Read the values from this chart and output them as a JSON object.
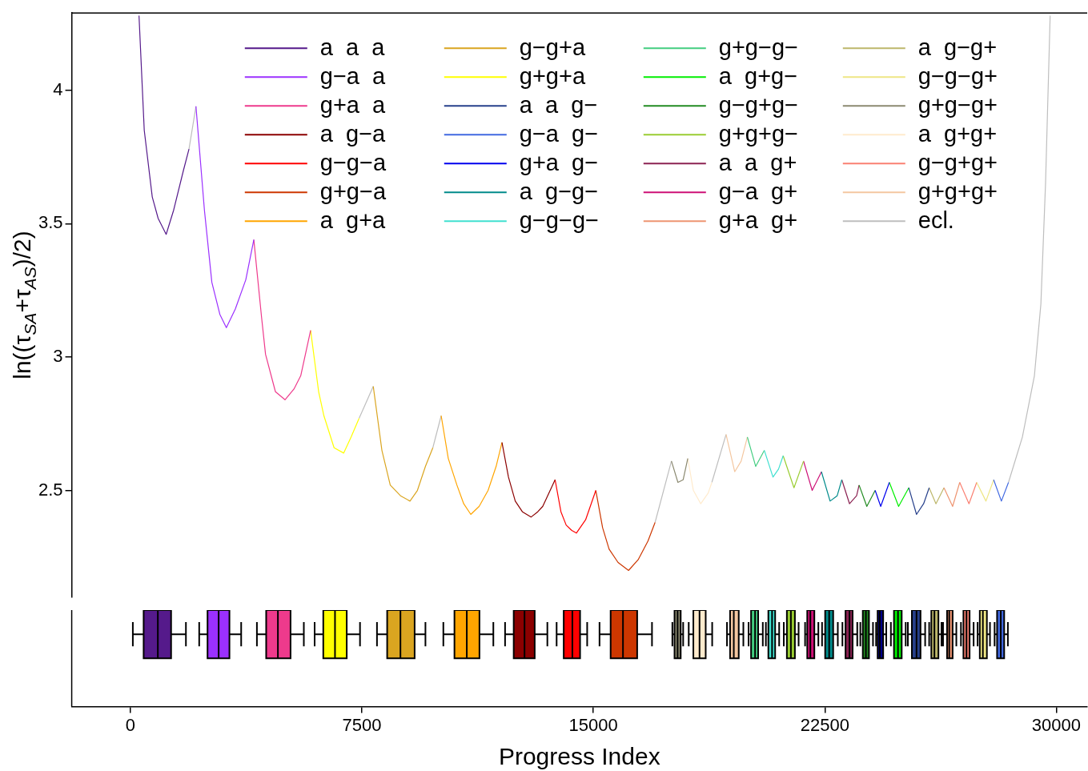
{
  "chart_data": [
    {
      "type": "line",
      "ylabel": "ln((τ$_{SA}$+τ$_{AS}$)/2)",
      "xlim": [
        -1900,
        31000
      ],
      "ylim": [
        2.1,
        4.29
      ],
      "xticks": [
        0,
        7500,
        15000,
        22500,
        30000
      ],
      "yticks": [
        2.5,
        3,
        3.5,
        4
      ],
      "grid": false,
      "legend": "top",
      "marker": "none",
      "line_style": "solid",
      "tick_labels": "y",
      "series": [
        {
          "name": "a  a  a",
          "color": "#551a8b",
          "x": [
            280,
            450,
            710,
            900,
            1160,
            1400,
            1720,
            1900
          ],
          "values": [
            4.28,
            3.85,
            3.6,
            3.52,
            3.46,
            3.55,
            3.7,
            3.78
          ]
        },
        {
          "name": "g−a  a",
          "color": "#9b30ff",
          "x": [
            2125,
            2400,
            2640,
            2900,
            3110,
            3400,
            3740,
            4000
          ],
          "values": [
            3.94,
            3.55,
            3.28,
            3.16,
            3.11,
            3.18,
            3.29,
            3.44
          ]
        },
        {
          "name": "g+a  a",
          "color": "#ee3a8c",
          "x": [
            4000,
            4250,
            4380,
            4700,
            5010,
            5300,
            5520,
            5840
          ],
          "values": [
            3.44,
            3.15,
            3.01,
            2.87,
            2.84,
            2.88,
            2.93,
            3.1
          ]
        },
        {
          "name": "a  g−a",
          "color": "#8b0000",
          "x": [
            12040,
            12250,
            12470,
            12700,
            12980,
            13200,
            13360,
            13760
          ],
          "values": [
            2.68,
            2.55,
            2.46,
            2.42,
            2.4,
            2.42,
            2.44,
            2.54
          ]
        },
        {
          "name": "g−g−a",
          "color": "#ff0000",
          "x": [
            13760,
            13950,
            14120,
            14300,
            14450,
            14750,
            15080
          ],
          "values": [
            2.54,
            2.42,
            2.37,
            2.35,
            2.34,
            2.39,
            2.5
          ]
        },
        {
          "name": "g+g−a",
          "color": "#cd3700",
          "x": [
            15080,
            15300,
            15510,
            15800,
            16140,
            16450,
            16770,
            17000
          ],
          "values": [
            2.5,
            2.36,
            2.28,
            2.23,
            2.2,
            2.24,
            2.31,
            2.38
          ]
        },
        {
          "name": "a  g+a",
          "color": "#ffa500",
          "x": [
            10070,
            10300,
            10580,
            10800,
            11030,
            11300,
            11590,
            11850,
            12040
          ],
          "values": [
            2.78,
            2.62,
            2.52,
            2.45,
            2.41,
            2.44,
            2.5,
            2.59,
            2.68
          ]
        },
        {
          "name": "g−g+a",
          "color": "#daa520",
          "x": [
            7870,
            8150,
            8420,
            8750,
            9060,
            9300,
            9560,
            9800
          ],
          "values": [
            2.89,
            2.65,
            2.52,
            2.48,
            2.46,
            2.5,
            2.59,
            2.66
          ]
        },
        {
          "name": "g+g+a",
          "color": "#ffff00",
          "x": [
            5840,
            6100,
            6270,
            6600,
            6910,
            7150,
            7410
          ],
          "values": [
            3.1,
            2.87,
            2.78,
            2.66,
            2.64,
            2.7,
            2.77
          ]
        },
        {
          "name": "a  a  g−",
          "color": "#27408b",
          "x": [
            25220,
            25470,
            25700,
            25880
          ],
          "values": [
            2.51,
            2.41,
            2.45,
            2.51
          ]
        },
        {
          "name": "g−a  g−",
          "color": "#4169e1",
          "x": [
            27970,
            28220,
            28450
          ],
          "values": [
            2.54,
            2.46,
            2.53
          ]
        },
        {
          "name": "g+a  g−",
          "color": "#0000ee",
          "x": [
            24130,
            24310,
            24590
          ],
          "values": [
            2.5,
            2.44,
            2.53
          ]
        },
        {
          "name": "a  g−g−",
          "color": "#008b8b",
          "x": [
            22390,
            22670,
            22900,
            23050
          ],
          "values": [
            2.57,
            2.46,
            2.48,
            2.54
          ]
        },
        {
          "name": "g−g−g−",
          "color": "#40e0d0",
          "x": [
            20540,
            20820,
            21000,
            21150
          ],
          "values": [
            2.65,
            2.55,
            2.58,
            2.63
          ]
        },
        {
          "name": "g+g−g−",
          "color": "#43cd80",
          "x": [
            19990,
            20260,
            20540
          ],
          "values": [
            2.7,
            2.59,
            2.65
          ]
        },
        {
          "name": "a  g+g−",
          "color": "#00ee00",
          "x": [
            24590,
            24890,
            25220
          ],
          "values": [
            2.53,
            2.44,
            2.51
          ]
        },
        {
          "name": "g−g+g−",
          "color": "#228b22",
          "x": [
            23610,
            23860,
            24130
          ],
          "values": [
            2.52,
            2.44,
            2.5
          ]
        },
        {
          "name": "g+g+g−",
          "color": "#9acd32",
          "x": [
            21150,
            21500,
            21810
          ],
          "values": [
            2.63,
            2.51,
            2.61
          ]
        },
        {
          "name": "a  a  g+",
          "color": "#8b2252",
          "x": [
            23050,
            23300,
            23530,
            23610
          ],
          "values": [
            2.54,
            2.45,
            2.48,
            2.52
          ]
        },
        {
          "name": "g−a  g+",
          "color": "#cd1076",
          "x": [
            21810,
            22090,
            22390
          ],
          "values": [
            2.61,
            2.5,
            2.57
          ]
        },
        {
          "name": "g+a  g+",
          "color": "#ee9572",
          "x": [
            26360,
            26640,
            26870
          ],
          "values": [
            2.51,
            2.44,
            2.53
          ]
        },
        {
          "name": "a  g−g+",
          "color": "#bdb76b",
          "x": [
            25880,
            26100,
            26360
          ],
          "values": [
            2.51,
            2.45,
            2.51
          ]
        },
        {
          "name": "g−g−g+",
          "color": "#eee685",
          "x": [
            27420,
            27720,
            27970
          ],
          "values": [
            2.53,
            2.46,
            2.54
          ]
        },
        {
          "name": "g+g−g+",
          "color": "#8b8970",
          "x": [
            17530,
            17740,
            17910,
            18060
          ],
          "values": [
            2.61,
            2.53,
            2.54,
            2.62
          ]
        },
        {
          "name": "a  g+g+",
          "color": "#ffebcd",
          "x": [
            18060,
            18240,
            18480,
            18720,
            18840
          ],
          "values": [
            2.62,
            2.5,
            2.45,
            2.49,
            2.53
          ]
        },
        {
          "name": "g−g+g+",
          "color": "#fa8072",
          "x": [
            26870,
            27170,
            27420
          ],
          "values": [
            2.53,
            2.45,
            2.53
          ]
        },
        {
          "name": "g+g+g+",
          "color": "#f4c7a0",
          "x": [
            19300,
            19580,
            19790,
            19990
          ],
          "values": [
            2.71,
            2.57,
            2.61,
            2.7
          ]
        },
        {
          "name": "ecl.",
          "color": "#bebebe",
          "x": [
            1900,
            2125,
            2130,
            7410,
            7870,
            7880,
            9800,
            10070,
            10080,
            17000,
            17530,
            17540,
            18840,
            19300,
            19310,
            28450,
            28900,
            29290,
            29500,
            29650,
            29800
          ],
          "values": [
            3.78,
            3.94,
            null,
            2.77,
            2.89,
            null,
            2.66,
            2.78,
            null,
            2.38,
            2.61,
            null,
            2.53,
            2.71,
            null,
            2.53,
            2.7,
            2.93,
            3.2,
            3.65,
            4.28
          ]
        }
      ]
    },
    {
      "type": "box",
      "orientation": "horizontal",
      "xlabel": "Progress Index",
      "categories": [
        null
      ],
      "xlim": [
        -1900,
        31000
      ],
      "xticks": [
        0,
        7500,
        15000,
        22500,
        30000
      ],
      "tick_labels": "x",
      "series": [
        {
          "color": "#551a8b",
          "boxes": [
            {
              "low": 80,
              "q1": 430,
              "median": 890,
              "q3": 1320,
              "high": 1800
            }
          ]
        },
        {
          "color": "#9b30ff",
          "boxes": [
            {
              "low": 2230,
              "q1": 2500,
              "median": 2860,
              "q3": 3210,
              "high": 3590
            }
          ]
        },
        {
          "color": "#ee3a8c",
          "boxes": [
            {
              "low": 4100,
              "q1": 4400,
              "median": 4780,
              "q3": 5190,
              "high": 5620
            }
          ]
        },
        {
          "color": "#ffff00",
          "boxes": [
            {
              "low": 5970,
              "q1": 6250,
              "median": 6630,
              "q3": 7010,
              "high": 7440
            }
          ]
        },
        {
          "color": "#daa520",
          "boxes": [
            {
              "low": 7990,
              "q1": 8320,
              "median": 8750,
              "q3": 9210,
              "high": 9560
            }
          ]
        },
        {
          "color": "#ffa500",
          "boxes": [
            {
              "low": 10140,
              "q1": 10500,
              "median": 10900,
              "q3": 11310,
              "high": 11760
            }
          ]
        },
        {
          "color": "#8b0000",
          "boxes": [
            {
              "low": 12140,
              "q1": 12420,
              "median": 12770,
              "q3": 13100,
              "high": 13510
            }
          ]
        },
        {
          "color": "#ff0000",
          "boxes": [
            {
              "low": 13810,
              "q1": 14040,
              "median": 14320,
              "q3": 14570,
              "high": 14800
            }
          ]
        },
        {
          "color": "#cd3700",
          "boxes": [
            {
              "low": 15200,
              "q1": 15560,
              "median": 15960,
              "q3": 16420,
              "high": 16900
            }
          ]
        },
        {
          "color": "#8b8970",
          "boxes": [
            {
              "low": 17560,
              "q1": 17630,
              "median": 17730,
              "q3": 17830,
              "high": 17910
            }
          ]
        },
        {
          "color": "#ffebcd",
          "boxes": [
            {
              "low": 18090,
              "q1": 18240,
              "median": 18440,
              "q3": 18640,
              "high": 18850
            }
          ]
        },
        {
          "color": "#f4c7a0",
          "boxes": [
            {
              "low": 19330,
              "q1": 19430,
              "median": 19550,
              "q3": 19710,
              "high": 19860
            }
          ]
        },
        {
          "color": "#43cd80",
          "boxes": [
            {
              "low": 20030,
              "q1": 20110,
              "median": 20240,
              "q3": 20340,
              "high": 20490
            }
          ]
        },
        {
          "color": "#40e0d0",
          "boxes": [
            {
              "low": 20590,
              "q1": 20670,
              "median": 20790,
              "q3": 20890,
              "high": 21020
            }
          ]
        },
        {
          "color": "#9acd32",
          "boxes": [
            {
              "low": 21170,
              "q1": 21270,
              "median": 21400,
              "q3": 21530,
              "high": 21650
            }
          ]
        },
        {
          "color": "#cd1076",
          "boxes": [
            {
              "low": 21860,
              "q1": 21930,
              "median": 22030,
              "q3": 22160,
              "high": 22290
            }
          ]
        },
        {
          "color": "#008b8b",
          "boxes": [
            {
              "low": 22410,
              "q1": 22510,
              "median": 22640,
              "q3": 22770,
              "high": 22920
            }
          ]
        },
        {
          "color": "#8b2252",
          "boxes": [
            {
              "low": 23070,
              "q1": 23170,
              "median": 23300,
              "q3": 23400,
              "high": 23550
            }
          ]
        },
        {
          "color": "#228b22",
          "boxes": [
            {
              "low": 23650,
              "q1": 23730,
              "median": 23830,
              "q3": 23930,
              "high": 24060
            }
          ]
        },
        {
          "color": "#00008b",
          "boxes": [
            {
              "low": 24160,
              "q1": 24210,
              "median": 24280,
              "q3": 24390,
              "high": 24490
            }
          ]
        },
        {
          "color": "#00ee00",
          "boxes": [
            {
              "low": 24640,
              "q1": 24740,
              "median": 24870,
              "q3": 24990,
              "high": 25120
            }
          ]
        },
        {
          "color": "#27408b",
          "boxes": [
            {
              "low": 25190,
              "q1": 25320,
              "median": 25470,
              "q3": 25600,
              "high": 25750
            }
          ]
        },
        {
          "color": "#bdb76b",
          "boxes": [
            {
              "low": 25880,
              "q1": 25950,
              "median": 26050,
              "q3": 26180,
              "high": 26280
            }
          ]
        },
        {
          "color": "#ee9572",
          "boxes": [
            {
              "low": 26330,
              "q1": 26460,
              "median": 26530,
              "q3": 26640,
              "high": 26760
            }
          ]
        },
        {
          "color": "#fa8072",
          "boxes": [
            {
              "low": 26910,
              "q1": 26990,
              "median": 27090,
              "q3": 27190,
              "high": 27320
            }
          ]
        },
        {
          "color": "#eee685",
          "boxes": [
            {
              "low": 27450,
              "q1": 27520,
              "median": 27620,
              "q3": 27750,
              "high": 27850
            }
          ]
        },
        {
          "color": "#4169e1",
          "boxes": [
            {
              "low": 28000,
              "q1": 28080,
              "median": 28200,
              "q3": 28310,
              "high": 28430
            }
          ]
        }
      ]
    }
  ]
}
